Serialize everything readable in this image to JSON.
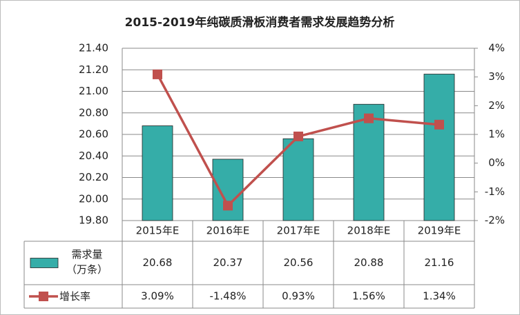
{
  "chart_data": {
    "type": "bar-line-table",
    "title": "2015-2019年纯碳质滑板消费者需求发展趋势分析",
    "categories": [
      "2015年E",
      "2016年E",
      "2017年E",
      "2018年E",
      "2019年E"
    ],
    "series": [
      {
        "name": "需求量\n（万条）",
        "type": "bar",
        "color": "#35ADA8",
        "values": [
          20.68,
          20.37,
          20.56,
          20.88,
          21.16
        ]
      },
      {
        "name": "增长率",
        "type": "line",
        "axis": "y2",
        "color": "#C0504D",
        "values": [
          3.09,
          -1.48,
          0.93,
          1.56,
          1.34
        ],
        "value_labels": [
          "3.09%",
          "-1.48%",
          "0.93%",
          "1.56%",
          "1.34%"
        ]
      }
    ],
    "ylim": [
      19.8,
      21.4
    ],
    "yticks": [
      {
        "value": 19.8,
        "label": "19.80"
      },
      {
        "value": 20.0,
        "label": "20.00"
      },
      {
        "value": 20.2,
        "label": "20.20"
      },
      {
        "value": 20.4,
        "label": "20.40"
      },
      {
        "value": 20.6,
        "label": "20.60"
      },
      {
        "value": 20.8,
        "label": "20.80"
      },
      {
        "value": 21.0,
        "label": "21.00"
      },
      {
        "value": 21.2,
        "label": "21.20"
      },
      {
        "value": 21.4,
        "label": "21.40"
      }
    ],
    "y2lim": [
      -2,
      4
    ],
    "y2ticks": [
      {
        "value": -2,
        "label": "-2%"
      },
      {
        "value": -1,
        "label": "-1%"
      },
      {
        "value": 0,
        "label": "0%"
      },
      {
        "value": 1,
        "label": "1%"
      },
      {
        "value": 2,
        "label": "2%"
      },
      {
        "value": 3,
        "label": "3%"
      },
      {
        "value": 4,
        "label": "4%"
      }
    ],
    "grid": true
  }
}
